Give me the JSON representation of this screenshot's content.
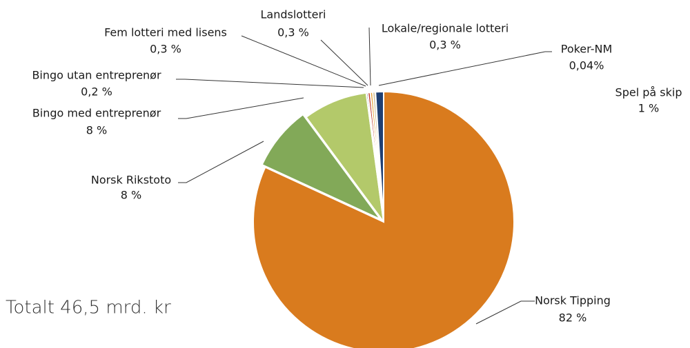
{
  "chart_data": {
    "type": "pie",
    "annotation": "Totalt 46,5 mrd. kr",
    "categories": [
      "Norsk Tipping",
      "Norsk Rikstoto",
      "Bingo med entreprenør",
      "Bingo utan entreprenør",
      "Fem lotteri med lisens",
      "Landslotteri",
      "Lokale/regionale lotteri",
      "Poker-NM",
      "Spel på skip"
    ],
    "values": [
      82,
      8,
      8,
      0.2,
      0.3,
      0.3,
      0.3,
      0.04,
      1
    ],
    "value_labels": [
      "82 %",
      "8 %",
      "8 %",
      "0,2 %",
      "0,3 %",
      "0,3 %",
      "0,3 %",
      "0,04%",
      "1 %"
    ],
    "colors": [
      "#d97b1e",
      "#82a958",
      "#b3c96a",
      "#2b2b2b",
      "#c0392b",
      "#e8a33a",
      "#cdb98c",
      "#a9c1df",
      "#1f3f73"
    ]
  }
}
